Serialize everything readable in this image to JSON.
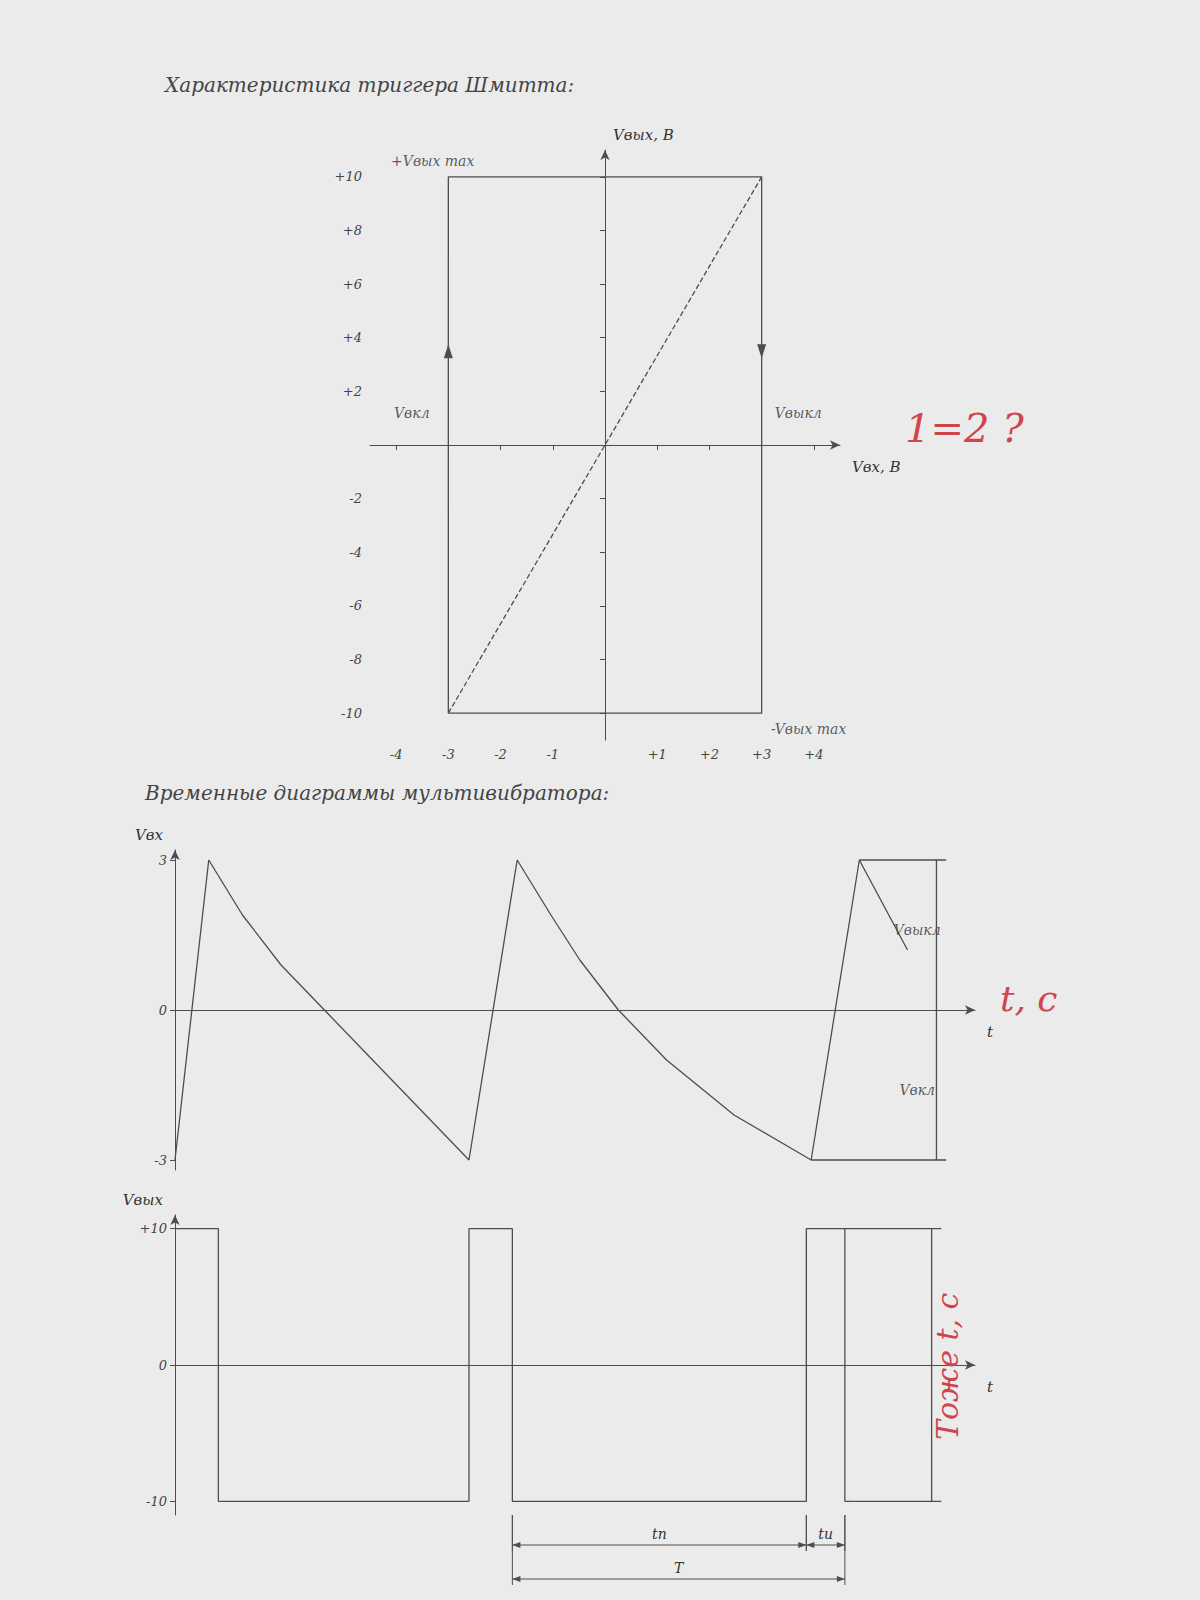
{
  "chart_data": [
    {
      "type": "line",
      "title": "Характеристика триггера Шмитта:",
      "xlabel": "Vвх, В",
      "ylabel": "Vвых, В",
      "xlim": [
        -4.5,
        4.5
      ],
      "ylim": [
        -11,
        11
      ],
      "xticks": [
        -4,
        -3,
        -2,
        -1,
        {
          "value": 1,
          "label": "+1"
        },
        {
          "value": 2,
          "label": "+2"
        },
        {
          "value": 3,
          "label": "+3"
        },
        {
          "value": 4,
          "label": "+4"
        }
      ],
      "yticks": [
        {
          "value": 10,
          "label": "+10"
        },
        {
          "value": 8,
          "label": "+8"
        },
        {
          "value": 6,
          "label": "+6"
        },
        {
          "value": 4,
          "label": "+4"
        },
        {
          "value": 2,
          "label": "+2"
        },
        -2,
        -4,
        -6,
        -8,
        -10
      ],
      "grid": false,
      "series": [
        {
          "x": [
            -3,
            -3,
            3,
            3,
            -3
          ],
          "values": [
            -10,
            10,
            10,
            -10,
            -10
          ],
          "color": "#4d4d4d",
          "line_style": "solid",
          "arrows": [
            {
              "x": -3,
              "y": 3.5,
              "direction": "up"
            },
            {
              "x": 3,
              "y": 3.5,
              "direction": "down"
            }
          ]
        },
        {
          "x": [
            -3,
            3
          ],
          "values": [
            -10,
            10
          ],
          "color": "#4d4d4d",
          "line_style": "dashed"
        }
      ],
      "annotations": [
        {
          "text": "+Vвых max",
          "x": -3.3,
          "y": 10.6
        },
        {
          "text": "-Vвых max",
          "x": 3.9,
          "y": -10.6
        },
        {
          "text": "Vвкл",
          "x": -3.7,
          "y": 1.2
        },
        {
          "text": "Vвыкл",
          "x": 3.7,
          "y": 1.2
        }
      ],
      "notes": [
        {
          "text": "1=2 ?",
          "color": "#d0454c"
        }
      ]
    },
    {
      "type": "line",
      "title": "Временные диаграммы мультивибратора:",
      "xlabel": "t",
      "ylabel": "Vвх",
      "xlim": [
        0,
        8.3
      ],
      "ylim": [
        -3.2,
        3.2
      ],
      "yticks": [
        3,
        0,
        -3
      ],
      "grid": false,
      "tick_labels": "y",
      "series": [
        {
          "x": [
            0,
            0.35,
            0.7,
            1.1,
            1.55,
            2.0,
            2.5,
            3.05,
            3.55,
            3.9,
            4.2,
            4.6,
            5.1,
            5.8,
            6.6,
            7.1,
            7.6
          ],
          "values": [
            -3,
            3,
            1.9,
            0.9,
            0,
            -0.9,
            -1.9,
            -3,
            3,
            1.9,
            1.0,
            0,
            -1.0,
            -2.1,
            -3,
            3,
            1.2
          ],
          "color": "#4d4d4d",
          "line_style": "solid"
        },
        {
          "x": [
            7.1,
            8.0
          ],
          "values": [
            3,
            3
          ],
          "color": "#4d4d4d",
          "line_style": "solid"
        },
        {
          "x": [
            6.6,
            8.0
          ],
          "values": [
            -3,
            -3
          ],
          "color": "#4d4d4d",
          "line_style": "solid"
        },
        {
          "x": [
            7.9,
            7.9
          ],
          "values": [
            3,
            -3
          ],
          "color": "#4d4d4d",
          "line_style": "solid"
        }
      ],
      "annotations": [
        {
          "text": "Vвыкл",
          "x": 7.7,
          "y": 1.6
        },
        {
          "text": "Vвкл",
          "x": 7.7,
          "y": -1.6
        }
      ],
      "notes": [
        {
          "text": "t, c",
          "color": "#d0454c"
        }
      ]
    },
    {
      "type": "line",
      "xlabel": "t",
      "ylabel": "Vвых",
      "xlim": [
        0,
        8.3
      ],
      "ylim": [
        -11,
        11
      ],
      "yticks": [
        {
          "value": 10,
          "label": "+10"
        },
        0,
        -10
      ],
      "grid": false,
      "tick_labels": "y",
      "series": [
        {
          "x": [
            0,
            0.45,
            0.45,
            3.05,
            3.05,
            3.5,
            3.5,
            6.55,
            6.55,
            6.95,
            6.95,
            7.05
          ],
          "values": [
            10,
            10,
            -10,
            -10,
            10,
            10,
            -10,
            -10,
            10,
            10,
            -10,
            -10
          ],
          "color": "#4d4d4d",
          "line_style": "solid"
        },
        {
          "x": [
            6.95,
            7.95
          ],
          "values": [
            10,
            10
          ],
          "color": "#4d4d4d",
          "line_style": "solid"
        },
        {
          "x": [
            7.05,
            7.95
          ],
          "values": [
            -10,
            -10
          ],
          "color": "#4d4d4d",
          "line_style": "solid"
        },
        {
          "x": [
            7.85,
            7.85
          ],
          "values": [
            10,
            -10
          ],
          "color": "#4d4d4d",
          "line_style": "solid"
        }
      ],
      "spans": [
        [
          {
            "text": "tп",
            "from": 3.5,
            "to": 6.55
          },
          {
            "text": "tи",
            "from": 6.55,
            "to": 6.95
          }
        ],
        [
          {
            "text": "T",
            "from": 3.5,
            "to": 6.95
          }
        ]
      ],
      "notes": [
        {
          "text": "Тоже t, c",
          "color": "#d0454c"
        }
      ]
    }
  ]
}
